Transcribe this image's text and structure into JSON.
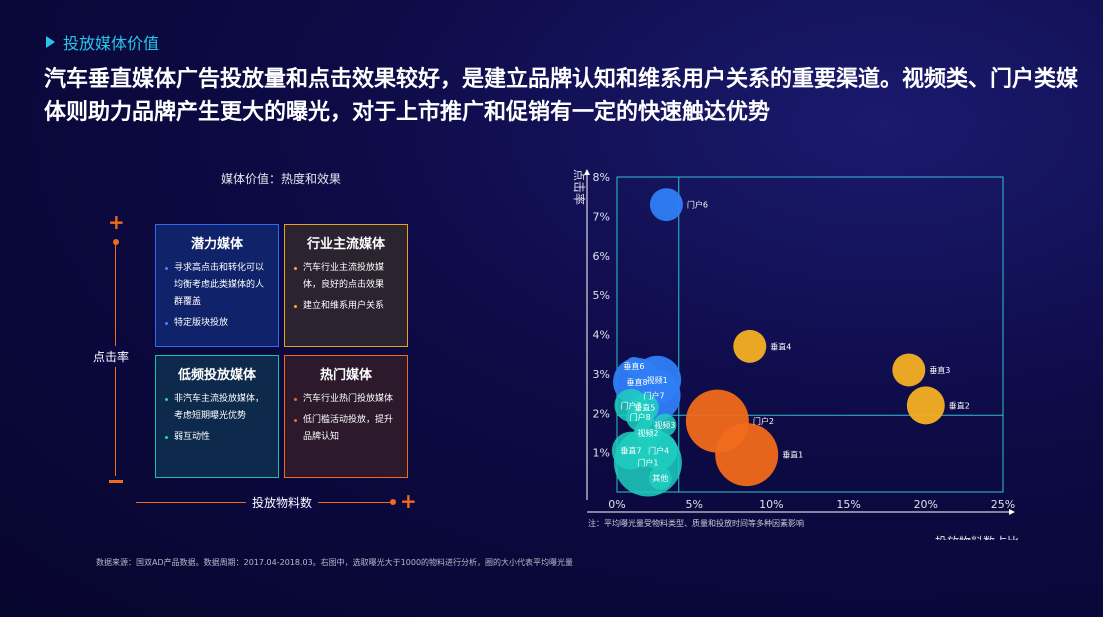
{
  "section_tag": "投放媒体价值",
  "headline": "汽车垂直媒体广告投放量和点击效果较好，是建立品牌认知和维系用户关系的重要渠道。视频类、门户类媒体则助力品牌产生更大的曝光，对于上市推广和促销有一定的快速触达优势",
  "matrix": {
    "title": "媒体价值：热度和效果",
    "y_label": "点击率",
    "x_label": "投放物料数",
    "plus": "+",
    "quadrants": [
      {
        "title": "潜力媒体",
        "items": [
          "寻求高点击和转化可以均衡考虑此类媒体的人群覆盖",
          "特定版块投放"
        ]
      },
      {
        "title": "行业主流媒体",
        "items": [
          "汽车行业主流投放媒体，良好的点击效果",
          "建立和维系用户关系"
        ]
      },
      {
        "title": "低频投放媒体",
        "items": [
          "非汽车主流投放媒体，考虑短期曝光优势",
          "弱互动性"
        ]
      },
      {
        "title": "热门媒体",
        "items": [
          "汽车行业热门投放媒体",
          "低门槛活动投放，提升品牌认知"
        ]
      }
    ]
  },
  "chart_data": {
    "type": "scatter",
    "subtype": "bubble",
    "xlabel": "投放物料数占比",
    "ylabel": "点击率",
    "xlim": [
      0,
      25
    ],
    "ylim": [
      0,
      8
    ],
    "x_ticks": [
      "0%",
      "5%",
      "10%",
      "15%",
      "20%",
      "25%"
    ],
    "y_ticks": [
      "",
      "1%",
      "2%",
      "3%",
      "4%",
      "5%",
      "6%",
      "7%",
      "8%"
    ],
    "reference_lines": {
      "x": 4,
      "y": 1.95
    },
    "colors": {
      "vertical": "#f5b023",
      "portal": "#f26a1b",
      "portal_blue": "#2f7ef5",
      "video": "#1fcfc0",
      "axis": "#ffffff",
      "quad_line": "#2ec2cf"
    },
    "points": [
      {
        "label": "门户6",
        "x": 3.2,
        "y": 7.3,
        "size": 5,
        "color": "#2f7ef5"
      },
      {
        "label": "垂直4",
        "x": 8.6,
        "y": 3.7,
        "size": 5,
        "color": "#f5b023"
      },
      {
        "label": "垂直3",
        "x": 18.9,
        "y": 3.1,
        "size": 5,
        "color": "#f5b023"
      },
      {
        "label": "垂直2",
        "x": 20.0,
        "y": 2.2,
        "size": 6,
        "color": "#f5b023"
      },
      {
        "label": "门户2",
        "x": 6.5,
        "y": 1.8,
        "size": 11,
        "color": "#f26a1b"
      },
      {
        "label": "垂直1",
        "x": 8.4,
        "y": 0.95,
        "size": 11,
        "color": "#f26a1b"
      },
      {
        "label": "垂直6",
        "x": 1.1,
        "y": 3.2,
        "size": 2,
        "color": "#2f7ef5"
      },
      {
        "label": "垂直8",
        "x": 1.3,
        "y": 2.8,
        "size": 8,
        "color": "#2f7ef5"
      },
      {
        "label": "视频1",
        "x": 2.6,
        "y": 2.85,
        "size": 8,
        "color": "#2f7ef5"
      },
      {
        "label": "门户7",
        "x": 2.4,
        "y": 2.45,
        "size": 9,
        "color": "#2f7ef5"
      },
      {
        "label": "门户3",
        "x": 0.9,
        "y": 2.2,
        "size": 5,
        "color": "#1fcfc0"
      },
      {
        "label": "垂直5",
        "x": 1.8,
        "y": 2.15,
        "size": 4,
        "color": "#1fcfc0"
      },
      {
        "label": "门户8",
        "x": 1.5,
        "y": 1.9,
        "size": 4,
        "color": "#1fcfc0"
      },
      {
        "label": "视频3",
        "x": 3.1,
        "y": 1.7,
        "size": 3,
        "color": "#1fcfc0"
      },
      {
        "label": "视频2",
        "x": 2.0,
        "y": 1.5,
        "size": 4,
        "color": "#1fcfc0"
      },
      {
        "label": "垂直7",
        "x": 0.9,
        "y": 1.05,
        "size": 6,
        "color": "#1fcfc0"
      },
      {
        "label": "门户4",
        "x": 2.7,
        "y": 1.05,
        "size": 6,
        "color": "#1fcfc0"
      },
      {
        "label": "门户1",
        "x": 2.0,
        "y": 0.75,
        "size": 12,
        "color": "#1fcfc0"
      },
      {
        "label": "其他",
        "x": 2.8,
        "y": 0.35,
        "size": 3,
        "color": "#1fcfc0"
      }
    ]
  },
  "footnote": "注：平均曝光量受物料类型、质量和投放时间等多种因素影响",
  "source": "数据来源：国双AD产品数据。数据周期：2017.04-2018.03。右图中，选取曝光大于1000的物料进行分析，圈的大小代表平均曝光量"
}
